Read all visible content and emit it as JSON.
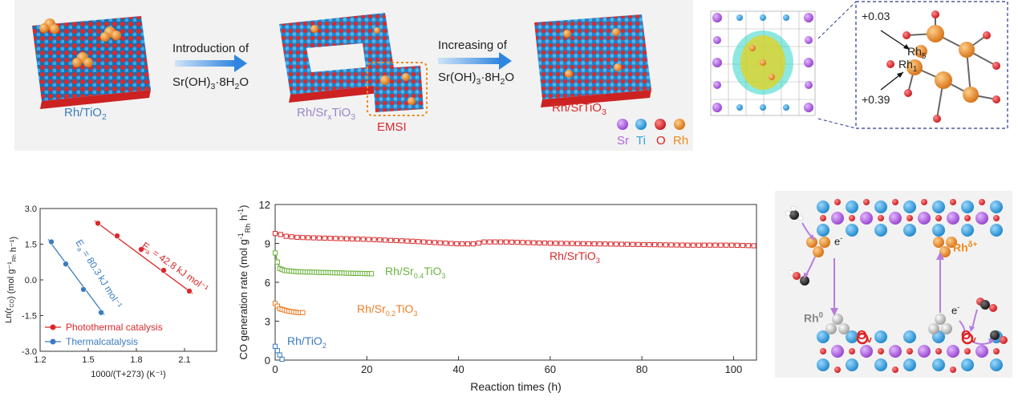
{
  "scheme": {
    "materials": {
      "rh_tio2": "Rh/TiO",
      "rh_tio2_sub": "2",
      "rh_srx_pre": "Rh/Sr",
      "rh_srx_sub": "x",
      "rh_srx_post": "TiO",
      "rh_srx_sub2": "3",
      "rh_srtio3": "Rh/SrTiO",
      "rh_srtio3_sub": "3",
      "emsi": "EMSI"
    },
    "step1": {
      "line1": "Introduction of",
      "reagent_pre": "Sr(OH)",
      "reagent_sub": "3",
      "reagent_post": "·8H",
      "reagent_sub2": "2",
      "reagent_end": "O"
    },
    "step2": {
      "line1": "Increasing of",
      "reagent_pre": "Sr(OH)",
      "reagent_sub": "3",
      "reagent_post": "·8H",
      "reagent_sub2": "2",
      "reagent_end": "O"
    },
    "legend": [
      {
        "label": "Sr",
        "color": "#b565e0"
      },
      {
        "label": "Ti",
        "color": "#2fa6e0"
      },
      {
        "label": "O",
        "color": "#e02020"
      },
      {
        "label": "Rh",
        "color": "#f08a1c"
      }
    ],
    "charges": {
      "top": "+0.03",
      "bottom": "+0.39",
      "rh5": "Rh",
      "rh5_sub": "5",
      "rh1": "Rh",
      "rh1_sub": "1"
    }
  },
  "mechanism": {
    "rh_delta": "Rh",
    "rh_delta_sup": "δ+",
    "rh0": "Rh",
    "rh0_sup": "0",
    "electron": "e",
    "electron_sup": "-",
    "ov": "O",
    "ov_sub": "v"
  },
  "chart_data": [
    {
      "type": "scatter",
      "xlabel": "1000/(T+273) (K⁻¹)",
      "ylabel_main": "Ln(r",
      "ylabel_sub1": "CO",
      "ylabel_mid": ") (mol g⁻¹",
      "ylabel_sub2": "Rh",
      "ylabel_end": " h⁻¹)",
      "xlim": [
        1.2,
        2.3
      ],
      "ylim": [
        -3.0,
        3.0
      ],
      "xticks": [
        "1.2",
        "1.5",
        "1.8",
        "2.1"
      ],
      "yticks": [
        "3.0",
        "1.5",
        "0.0",
        "-1.5",
        "-3.0"
      ],
      "series": [
        {
          "name": "Photothermal catalysis",
          "color": "#d9292b",
          "x": [
            1.56,
            1.68,
            1.83,
            1.97,
            2.13
          ],
          "y": [
            2.38,
            1.85,
            1.28,
            0.4,
            -0.47
          ],
          "ea_label": "E",
          "ea_sub": "a",
          "ea_value": " = 42.8 kJ mol⁻¹"
        },
        {
          "name": "Thermalcatalysis",
          "color": "#3a7cc0",
          "x": [
            1.27,
            1.36,
            1.47,
            1.58
          ],
          "y": [
            1.6,
            0.67,
            -0.4,
            -1.37
          ],
          "ea_label": "E",
          "ea_sub": "a",
          "ea_value": " = 80.3 kJ mol⁻¹"
        }
      ]
    },
    {
      "type": "line",
      "xlabel": "Reaction times (h)",
      "ylabel_main": "CO generation rate (mol g",
      "ylabel_sup1": "-1",
      "ylabel_sub": "Rh",
      "ylabel_end": " h",
      "ylabel_sup2": "-1",
      "ylabel_close": ")",
      "xlim": [
        0,
        105
      ],
      "ylim": [
        0,
        12
      ],
      "xticks": [
        "0",
        "20",
        "40",
        "60",
        "80",
        "100"
      ],
      "yticks": [
        "0",
        "3",
        "6",
        "9",
        "12"
      ],
      "series": [
        {
          "name": "Rh/SrTiO3",
          "label": "Rh/SrTiO",
          "label_sub": "3",
          "color": "#d9292b",
          "x": [
            0,
            1,
            2,
            5,
            10,
            20,
            30,
            40,
            44,
            45,
            50,
            60,
            70,
            80,
            90,
            100,
            105
          ],
          "y": [
            9.8,
            9.75,
            9.6,
            9.5,
            9.45,
            9.35,
            9.2,
            9.0,
            9.0,
            9.15,
            9.15,
            9.05,
            9.0,
            8.95,
            8.9,
            8.9,
            8.85
          ]
        },
        {
          "name": "Rh/Sr0.4TiO3",
          "label": "Rh/Sr",
          "label_sub": "0.4",
          "label_post": "TiO",
          "label_sub2": "3",
          "color": "#6db33f",
          "x": [
            0,
            0.5,
            1,
            2,
            5,
            10,
            15,
            21
          ],
          "y": [
            8.3,
            7.6,
            7.1,
            6.95,
            6.85,
            6.8,
            6.75,
            6.7
          ]
        },
        {
          "name": "Rh/Sr0.2TiO3",
          "label": "Rh/Sr",
          "label_sub": "0.2",
          "label_post": "TiO",
          "label_sub2": "3",
          "color": "#ee7d24",
          "x": [
            0,
            0.5,
            1,
            2,
            3,
            4,
            5,
            6
          ],
          "y": [
            4.4,
            4.2,
            4.0,
            3.9,
            3.8,
            3.75,
            3.7,
            3.7
          ]
        },
        {
          "name": "Rh/TiO2",
          "label": "Rh/TiO",
          "label_sub": "2",
          "color": "#3a7cc0",
          "x": [
            0,
            0.3,
            0.6,
            0.9,
            1.2,
            1.5
          ],
          "y": [
            1.1,
            0.9,
            0.7,
            0.5,
            0.3,
            0.1
          ]
        }
      ]
    }
  ]
}
